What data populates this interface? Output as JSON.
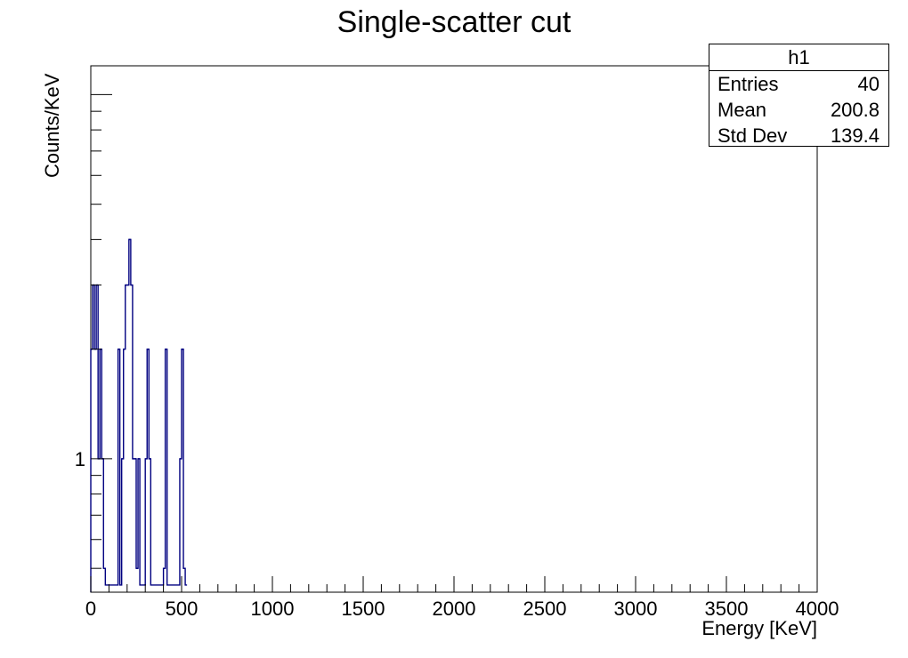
{
  "chart_data": {
    "type": "bar",
    "title": "Single-scatter cut",
    "xlabel": "Energy [KeV]",
    "ylabel": "Counts/KeV",
    "xlim": [
      0,
      4000
    ],
    "ylim": [
      0.43,
      12
    ],
    "log_y": true,
    "grid": false,
    "bin_width": 10,
    "x_ticks": [
      0,
      500,
      1000,
      1500,
      2000,
      2500,
      3000,
      3500,
      4000
    ],
    "y_tick_labels": [
      {
        "value": 1,
        "label": "1"
      }
    ],
    "line_color": "#000080",
    "series": [
      {
        "x": [
          0,
          10,
          20,
          30,
          40,
          50,
          60,
          70,
          150,
          170,
          180,
          190,
          200,
          210,
          220,
          230,
          240,
          250,
          260,
          300,
          310,
          320,
          400,
          410,
          490,
          500,
          510
        ],
        "values": [
          2,
          3,
          2,
          3,
          1,
          2,
          1,
          0.5,
          2,
          1,
          2,
          3,
          3,
          4,
          3,
          1,
          1,
          0.5,
          1,
          1,
          2,
          1,
          0.5,
          2,
          1,
          2,
          0.5
        ]
      }
    ]
  },
  "stats": {
    "title": "h1",
    "rows": [
      {
        "label": "Entries",
        "value": "40"
      },
      {
        "label": "Mean",
        "value": "200.8"
      },
      {
        "label": "Std Dev",
        "value": "139.4"
      }
    ]
  }
}
